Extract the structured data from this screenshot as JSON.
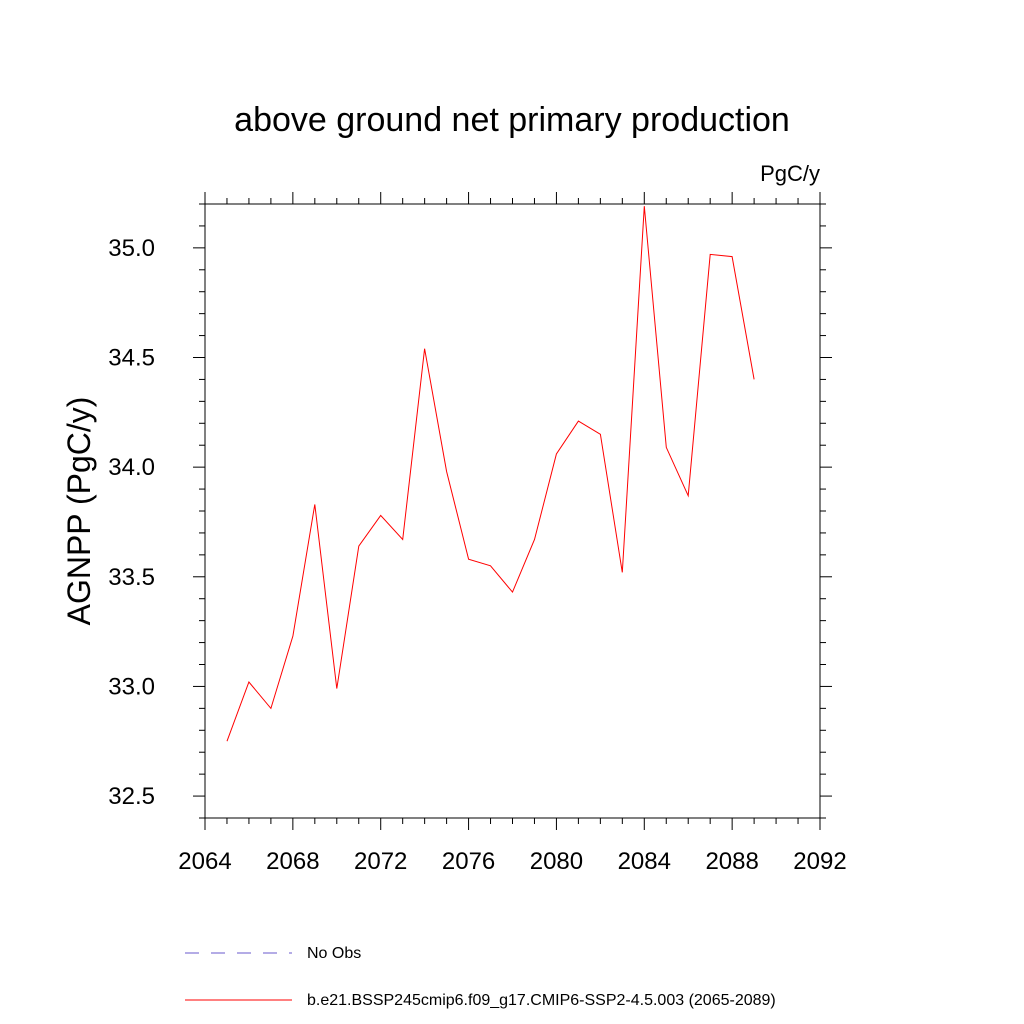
{
  "chart_data": {
    "type": "line",
    "title": "above ground net primary production",
    "units": "PgC/y",
    "xlabel": "",
    "ylabel": "AGNPP  (PgC/y)",
    "xlim": [
      2064,
      2092
    ],
    "ylim": [
      32.4,
      35.2
    ],
    "xticks": [
      2064,
      2068,
      2072,
      2076,
      2080,
      2084,
      2088,
      2092
    ],
    "yticks": [
      32.5,
      33.0,
      33.5,
      34.0,
      34.5,
      35.0
    ],
    "ytick_labels": [
      "32.5",
      "33.0",
      "33.5",
      "34.0",
      "34.5",
      "35.0"
    ],
    "grid": false,
    "legend_position": "bottom",
    "series": [
      {
        "name": "b.e21.BSSP245cmip6.f09_g17.CMIP6-SSP2-4.5.003 (2065-2089)",
        "color": "#ff0000",
        "style": "solid",
        "x": [
          2065,
          2066,
          2067,
          2068,
          2069,
          2070,
          2071,
          2072,
          2073,
          2074,
          2075,
          2076,
          2077,
          2078,
          2079,
          2080,
          2081,
          2082,
          2083,
          2084,
          2085,
          2086,
          2087,
          2088,
          2089
        ],
        "y": [
          32.75,
          33.02,
          32.9,
          33.23,
          33.83,
          32.99,
          33.64,
          33.78,
          33.67,
          34.54,
          33.98,
          33.58,
          33.55,
          33.43,
          33.67,
          34.06,
          34.21,
          34.15,
          33.52,
          35.19,
          34.09,
          33.87,
          34.97,
          34.96,
          34.4
        ]
      }
    ],
    "legend": [
      {
        "label": "No Obs",
        "color": "#6a5acd",
        "style": "dashed"
      },
      {
        "label": "b.e21.BSSP245cmip6.f09_g17.CMIP6-SSP2-4.5.003 (2065-2089)",
        "color": "#ff0000",
        "style": "solid"
      }
    ]
  }
}
